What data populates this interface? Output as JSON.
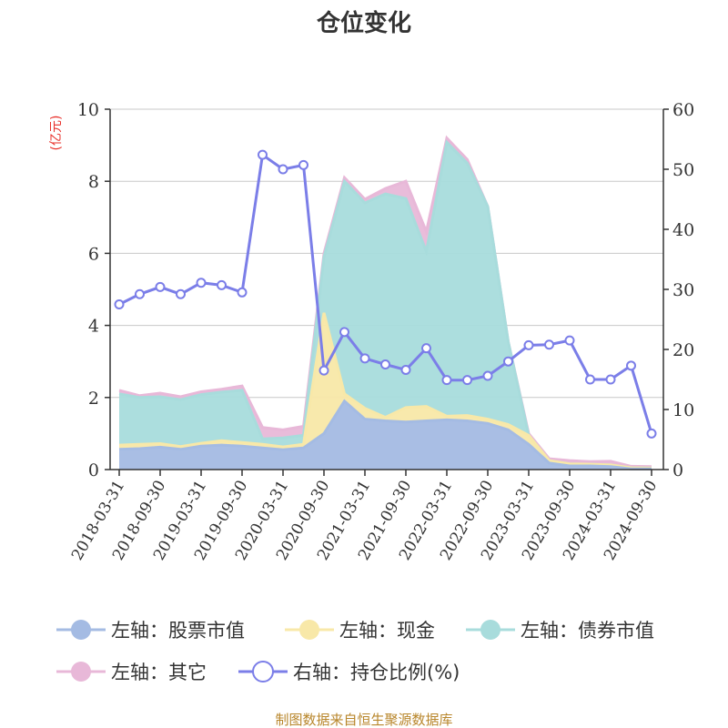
{
  "title": "仓位变化",
  "source_note": "制图数据来自恒生聚源数据库",
  "colors": {
    "stock": "#a4bbe3",
    "cash": "#f8e8a8",
    "bond": "#a8dcdc",
    "other": "#e8b8d8",
    "ratio": "#7b7ee8",
    "axis": "#333333",
    "grid": "#c8c8c8",
    "unit": "#e8302a",
    "source": "#b8862b"
  },
  "legend": [
    {
      "label": "左轴：股票市值",
      "color": "#a4bbe3",
      "icon": "filled-circle-marker"
    },
    {
      "label": "左轴：现金",
      "color": "#f8e8a8",
      "icon": "filled-circle-marker"
    },
    {
      "label": "左轴：债券市值",
      "color": "#a8dcdc",
      "icon": "filled-circle-marker"
    },
    {
      "label": "左轴：其它",
      "color": "#e8b8d8",
      "icon": "filled-circle-marker"
    },
    {
      "label": "右轴：持仓比例(%)",
      "color": "#7b7ee8",
      "icon": "hollow-circle-marker"
    }
  ],
  "chart_data": {
    "type": "area",
    "title": "仓位变化",
    "left_axis": {
      "label": "(亿元)",
      "min": 0,
      "max": 10,
      "ticks": [
        "0",
        "2",
        "4",
        "6",
        "8",
        "10"
      ]
    },
    "right_axis": {
      "label": "",
      "min": 0,
      "max": 60,
      "ticks": [
        "0",
        "10",
        "20",
        "30",
        "40",
        "50",
        "60"
      ]
    },
    "grid": true,
    "legend_position": "bottom",
    "x": [
      "2018-03-31",
      "2018-06-30",
      "2018-09-30",
      "2018-12-31",
      "2019-03-31",
      "2019-06-30",
      "2019-09-30",
      "2019-12-31",
      "2020-03-31",
      "2020-06-30",
      "2020-09-30",
      "2020-12-31",
      "2021-03-31",
      "2021-06-30",
      "2021-09-30",
      "2021-12-31",
      "2022-03-31",
      "2022-06-30",
      "2022-09-30",
      "2022-12-31",
      "2023-03-31",
      "2023-06-30",
      "2023-09-30",
      "2023-12-31",
      "2024-03-31",
      "2024-06-30",
      "2024-09-30"
    ],
    "x_tick_labels": [
      "2018-03-31",
      "2018-09-30",
      "2019-03-31",
      "2019-09-30",
      "2020-03-31",
      "2020-09-30",
      "2021-03-31",
      "2021-09-30",
      "2022-03-31",
      "2022-09-30",
      "2023-03-31",
      "2023-09-30",
      "2024-03-31",
      "2024-09-30"
    ],
    "stacked": true,
    "series": [
      {
        "name": "左轴：股票市值",
        "axis": "left",
        "values": [
          0.56,
          0.58,
          0.62,
          0.56,
          0.65,
          0.68,
          0.65,
          0.6,
          0.55,
          0.6,
          1.0,
          1.9,
          1.4,
          1.35,
          1.32,
          1.35,
          1.38,
          1.35,
          1.28,
          1.1,
          0.7,
          0.18,
          0.1,
          0.1,
          0.08,
          0.02,
          0.02
        ]
      },
      {
        "name": "左轴：现金",
        "axis": "left",
        "values": [
          0.12,
          0.12,
          0.1,
          0.08,
          0.08,
          0.12,
          0.1,
          0.1,
          0.08,
          0.1,
          3.35,
          0.2,
          0.3,
          0.1,
          0.4,
          0.4,
          0.1,
          0.15,
          0.12,
          0.15,
          0.25,
          0.07,
          0.06,
          0.05,
          0.05,
          0.03,
          0.02
        ]
      },
      {
        "name": "左轴：债券市值",
        "axis": "left",
        "values": [
          1.42,
          1.3,
          1.3,
          1.3,
          1.35,
          1.35,
          1.45,
          0.15,
          0.25,
          0.25,
          1.55,
          5.9,
          5.7,
          6.2,
          5.8,
          4.3,
          7.6,
          7.0,
          5.9,
          2.3,
          0.0,
          0.0,
          0.0,
          0.0,
          0.0,
          0.0,
          0.0
        ]
      },
      {
        "name": "左轴：其它",
        "axis": "left",
        "values": [
          0.1,
          0.05,
          0.1,
          0.08,
          0.08,
          0.08,
          0.12,
          0.32,
          0.22,
          0.25,
          0.1,
          0.1,
          0.1,
          0.15,
          0.48,
          0.55,
          0.12,
          0.1,
          0.0,
          0.0,
          0.05,
          0.05,
          0.09,
          0.07,
          0.1,
          0.04,
          0.04
        ]
      },
      {
        "name": "右轴：持仓比例(%)",
        "axis": "right",
        "type": "line",
        "values": [
          27.5,
          29.2,
          30.4,
          29.2,
          31.1,
          30.7,
          29.5,
          52.4,
          50.0,
          50.7,
          16.5,
          22.9,
          18.5,
          17.5,
          16.6,
          20.2,
          14.9,
          14.9,
          15.6,
          18.0,
          20.7,
          20.8,
          21.5,
          15.0,
          15.0,
          17.3,
          6.0
        ]
      }
    ]
  }
}
